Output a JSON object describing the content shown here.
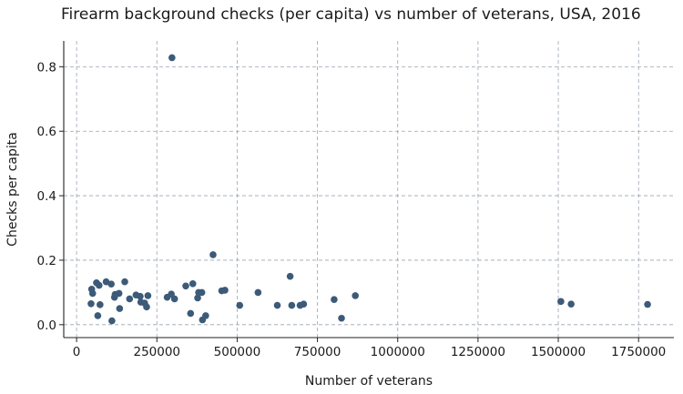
{
  "chart_data": {
    "type": "scatter",
    "title": "Firearm background checks (per capita) vs number of veterans, USA, 2016",
    "xlabel": "Number of veterans",
    "ylabel": "Checks per capita",
    "xlim": [
      -40000,
      1860000
    ],
    "ylim": [
      -0.04,
      0.88
    ],
    "xticks": [
      0,
      250000,
      500000,
      750000,
      1000000,
      1250000,
      1500000,
      1750000
    ],
    "xtick_labels": [
      "0",
      "250000",
      "500000",
      "750000",
      "1000000",
      "1250000",
      "1500000",
      "1750000"
    ],
    "yticks": [
      0.0,
      0.2,
      0.4,
      0.6,
      0.8
    ],
    "ytick_labels": [
      "0.0",
      "0.2",
      "0.4",
      "0.6",
      "0.8"
    ],
    "grid": true,
    "marker_color": "#3d5a78",
    "points": [
      {
        "x": 45000,
        "y": 0.065
      },
      {
        "x": 47000,
        "y": 0.11
      },
      {
        "x": 50000,
        "y": 0.097
      },
      {
        "x": 62000,
        "y": 0.13
      },
      {
        "x": 66000,
        "y": 0.028
      },
      {
        "x": 70000,
        "y": 0.122
      },
      {
        "x": 73000,
        "y": 0.062
      },
      {
        "x": 92000,
        "y": 0.133
      },
      {
        "x": 108000,
        "y": 0.126
      },
      {
        "x": 110000,
        "y": 0.012
      },
      {
        "x": 118000,
        "y": 0.085
      },
      {
        "x": 120000,
        "y": 0.094
      },
      {
        "x": 132000,
        "y": 0.097
      },
      {
        "x": 134000,
        "y": 0.05
      },
      {
        "x": 150000,
        "y": 0.133
      },
      {
        "x": 165000,
        "y": 0.08
      },
      {
        "x": 185000,
        "y": 0.092
      },
      {
        "x": 198000,
        "y": 0.088
      },
      {
        "x": 200000,
        "y": 0.07
      },
      {
        "x": 212000,
        "y": 0.067
      },
      {
        "x": 218000,
        "y": 0.055
      },
      {
        "x": 222000,
        "y": 0.09
      },
      {
        "x": 282000,
        "y": 0.085
      },
      {
        "x": 295000,
        "y": 0.095
      },
      {
        "x": 297000,
        "y": 0.828
      },
      {
        "x": 305000,
        "y": 0.08
      },
      {
        "x": 340000,
        "y": 0.12
      },
      {
        "x": 355000,
        "y": 0.035
      },
      {
        "x": 362000,
        "y": 0.127
      },
      {
        "x": 377000,
        "y": 0.083
      },
      {
        "x": 380000,
        "y": 0.1
      },
      {
        "x": 390000,
        "y": 0.1
      },
      {
        "x": 392000,
        "y": 0.015
      },
      {
        "x": 402000,
        "y": 0.028
      },
      {
        "x": 425000,
        "y": 0.217
      },
      {
        "x": 452000,
        "y": 0.105
      },
      {
        "x": 462000,
        "y": 0.107
      },
      {
        "x": 508000,
        "y": 0.06
      },
      {
        "x": 565000,
        "y": 0.1
      },
      {
        "x": 625000,
        "y": 0.06
      },
      {
        "x": 665000,
        "y": 0.15
      },
      {
        "x": 670000,
        "y": 0.06
      },
      {
        "x": 696000,
        "y": 0.06
      },
      {
        "x": 707000,
        "y": 0.064
      },
      {
        "x": 802000,
        "y": 0.078
      },
      {
        "x": 825000,
        "y": 0.02
      },
      {
        "x": 868000,
        "y": 0.09
      },
      {
        "x": 1508000,
        "y": 0.072
      },
      {
        "x": 1540000,
        "y": 0.064
      },
      {
        "x": 1778000,
        "y": 0.063
      }
    ]
  }
}
